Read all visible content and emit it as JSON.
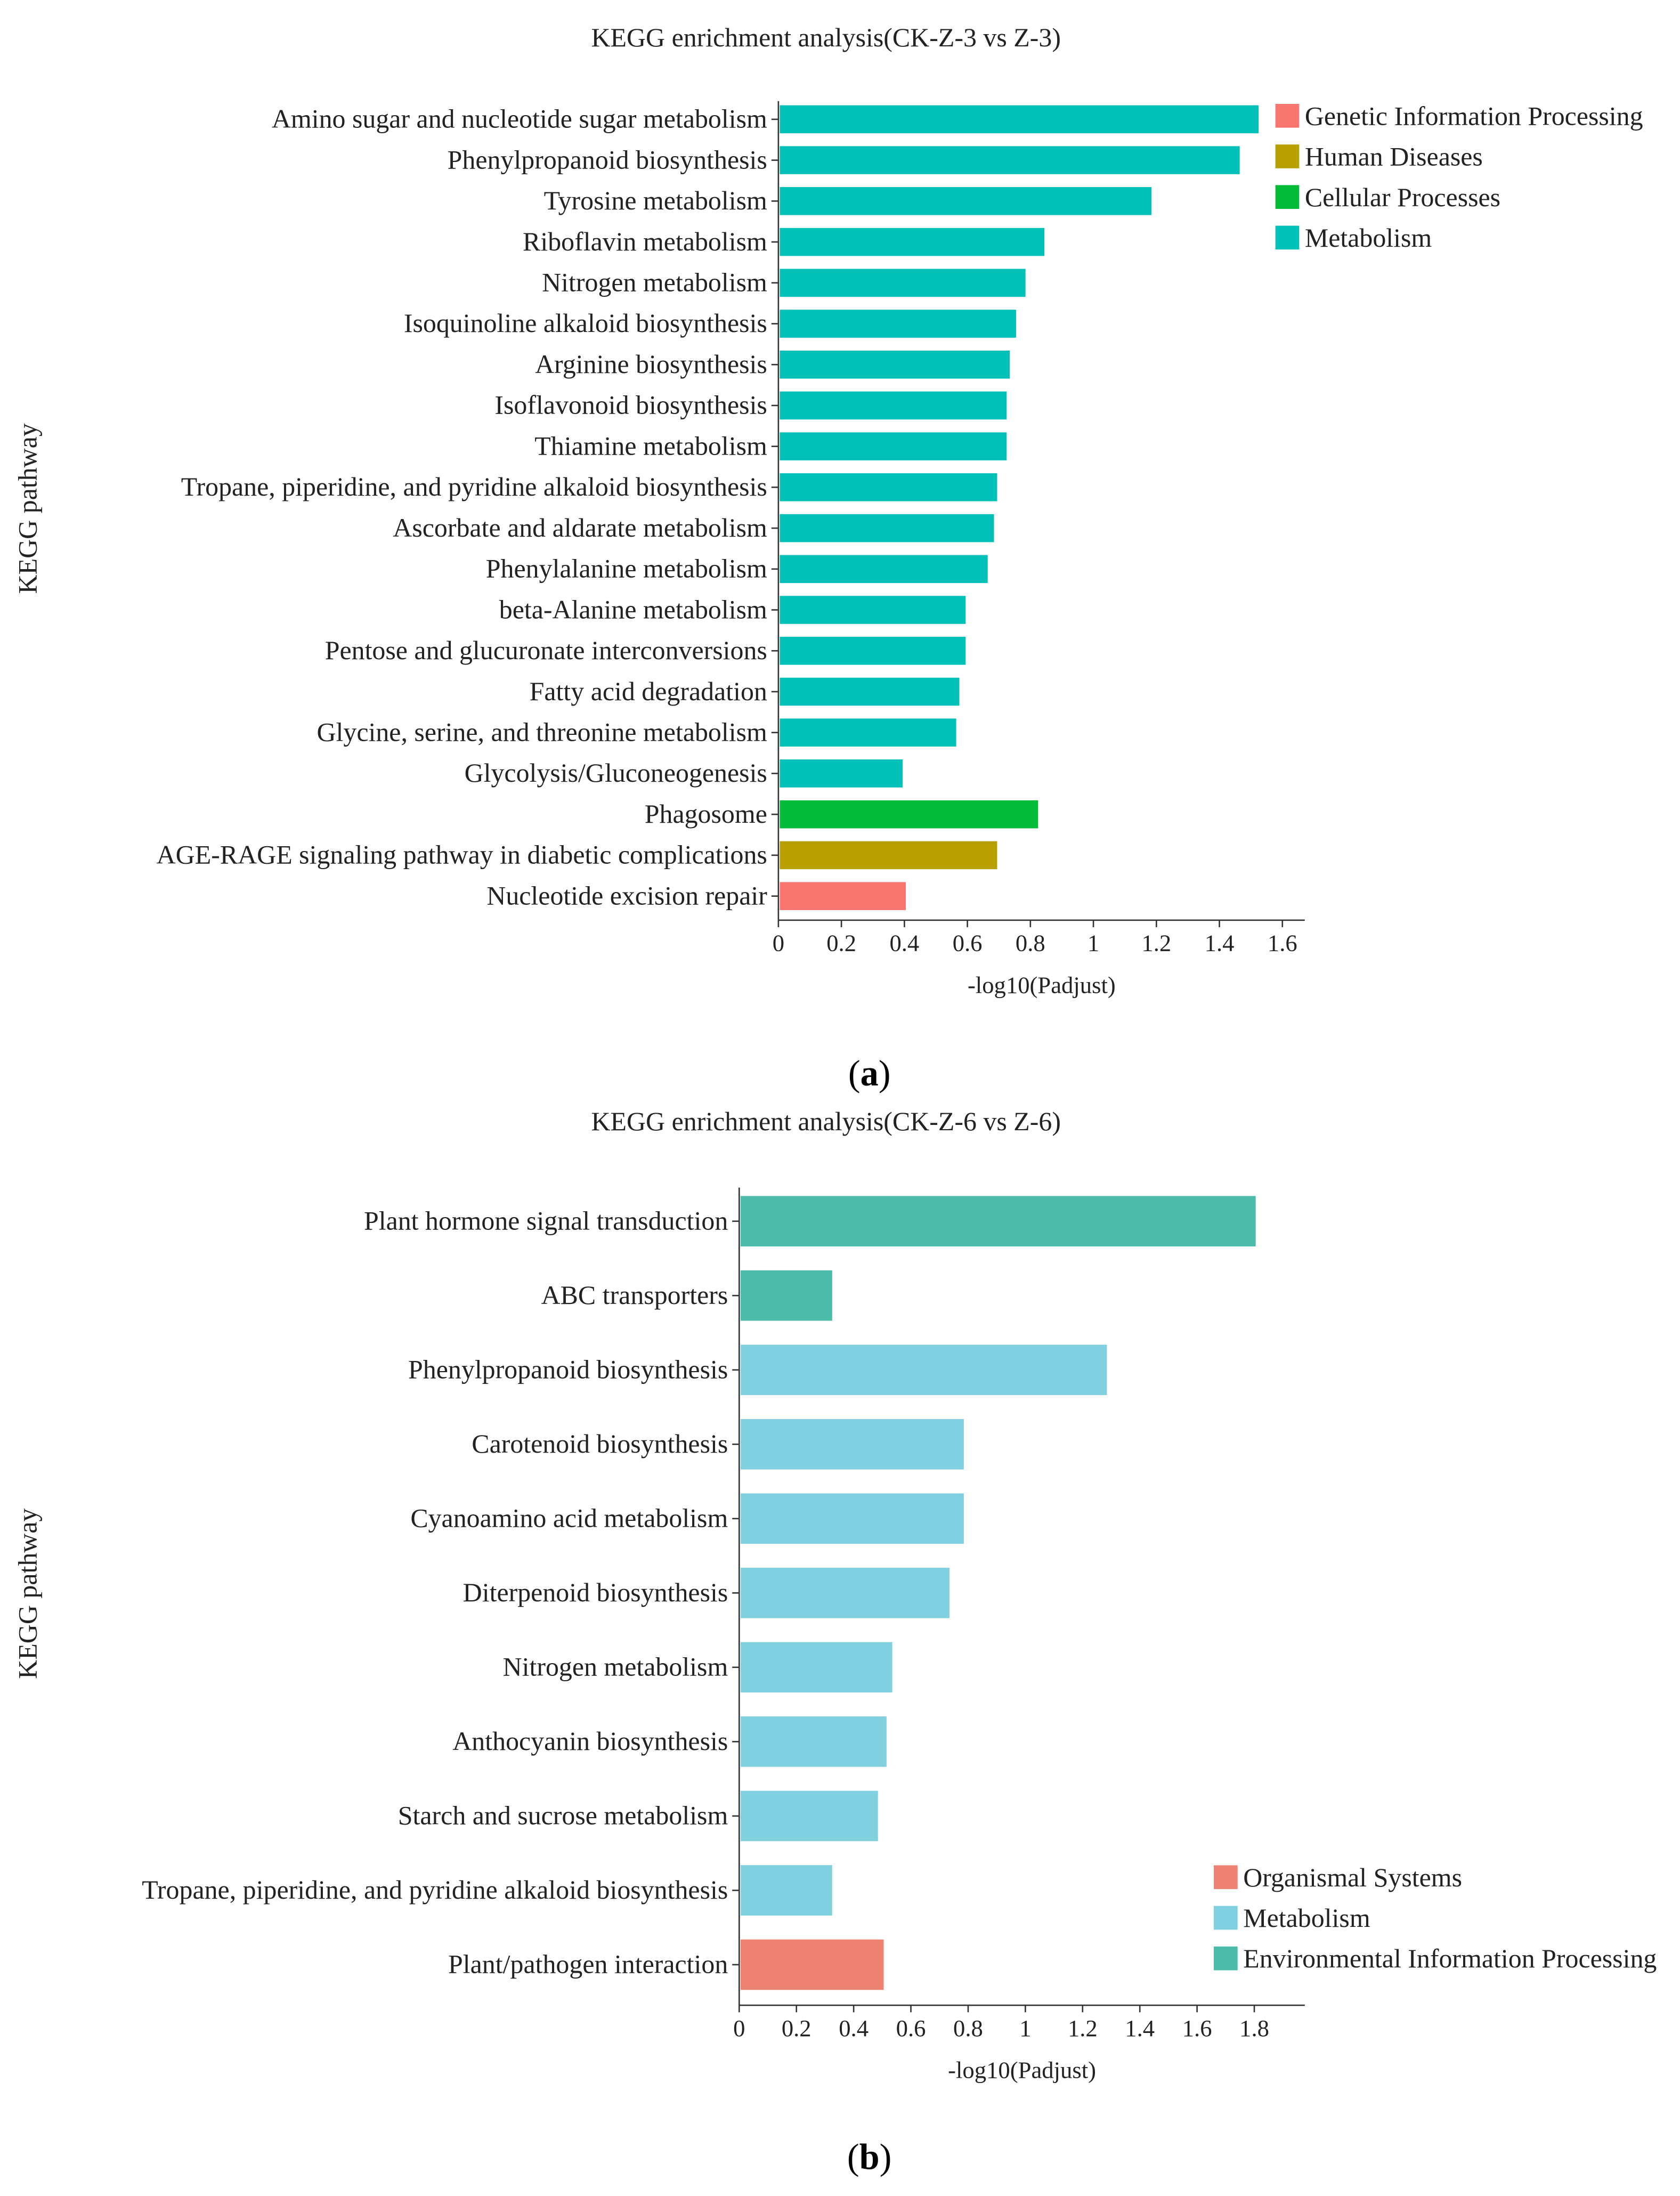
{
  "captions": [
    "(a)",
    "(b)"
  ],
  "caption_letters": [
    "a",
    "b"
  ],
  "chart_data": [
    {
      "type": "bar",
      "orientation": "horizontal",
      "title": "KEGG enrichment analysis(CK-Z-3 vs Z-3)",
      "xlabel": "-log10(Padjust)",
      "ylabel": "KEGG pathway",
      "xlim": [
        0,
        1.6
      ],
      "xticks": [
        "0",
        "0.2",
        "0.4",
        "0.6",
        "0.8",
        "1",
        "1.2",
        "1.4",
        "1.6"
      ],
      "legend_position": "top-right",
      "legend": [
        {
          "name": "Genetic Information Processing",
          "color": "#F8766D"
        },
        {
          "name": "Human Diseases",
          "color": "#B79F00"
        },
        {
          "name": "Cellular Processes",
          "color": "#00BA38"
        },
        {
          "name": "Metabolism",
          "color": "#00C0B8"
        }
      ],
      "categories": [
        "Amino sugar and nucleotide sugar metabolism",
        "Phenylpropanoid biosynthesis",
        "Tyrosine metabolism",
        "Riboflavin metabolism",
        "Nitrogen metabolism",
        "Isoquinoline alkaloid biosynthesis",
        "Arginine biosynthesis",
        "Isoflavonoid biosynthesis",
        "Thiamine metabolism",
        "Tropane, piperidine, and pyridine alkaloid biosynthesis",
        "Ascorbate and aldarate metabolism",
        "Phenylalanine metabolism",
        "beta-Alanine metabolism",
        "Pentose and glucuronate interconversions",
        "Fatty acid degradation",
        "Glycine, serine, and threonine metabolism",
        "Glycolysis/Gluconeogenesis",
        "Phagosome",
        "AGE-RAGE signaling pathway in diabetic complications",
        "Nucleotide excision repair"
      ],
      "values": [
        1.52,
        1.46,
        1.18,
        0.84,
        0.78,
        0.75,
        0.73,
        0.72,
        0.72,
        0.69,
        0.68,
        0.66,
        0.59,
        0.59,
        0.57,
        0.56,
        0.39,
        0.82,
        0.69,
        0.4
      ],
      "groups": [
        "Metabolism",
        "Metabolism",
        "Metabolism",
        "Metabolism",
        "Metabolism",
        "Metabolism",
        "Metabolism",
        "Metabolism",
        "Metabolism",
        "Metabolism",
        "Metabolism",
        "Metabolism",
        "Metabolism",
        "Metabolism",
        "Metabolism",
        "Metabolism",
        "Metabolism",
        "Cellular Processes",
        "Human Diseases",
        "Genetic Information Processing"
      ]
    },
    {
      "type": "bar",
      "orientation": "horizontal",
      "title": "KEGG enrichment analysis(CK-Z-6 vs Z-6)",
      "xlabel": "-log10(Padjust)",
      "ylabel": "KEGG pathway",
      "xlim": [
        0,
        1.8
      ],
      "xticks": [
        "0",
        "0.2",
        "0.4",
        "0.6",
        "0.8",
        "1",
        "1.2",
        "1.4",
        "1.6",
        "1.8"
      ],
      "legend_position": "bottom-right",
      "legend": [
        {
          "name": "Organismal Systems",
          "color": "#EE8272"
        },
        {
          "name": "Metabolism",
          "color": "#80D0E0"
        },
        {
          "name": "Environmental Information Processing",
          "color": "#4CBCA8"
        }
      ],
      "categories": [
        "Plant hormone signal transduction",
        "ABC transporters",
        "Phenylpropanoid biosynthesis",
        "Carotenoid biosynthesis",
        "Cyanoamino acid metabolism",
        "Diterpenoid biosynthesis",
        "Nitrogen metabolism",
        "Anthocyanin biosynthesis",
        "Starch and sucrose metabolism",
        "Tropane, piperidine, and pyridine alkaloid biosynthesis",
        "Plant/pathogen interaction"
      ],
      "values": [
        1.8,
        0.32,
        1.28,
        0.78,
        0.78,
        0.73,
        0.53,
        0.51,
        0.48,
        0.32,
        0.5
      ],
      "groups": [
        "Environmental Information Processing",
        "Environmental Information Processing",
        "Metabolism",
        "Metabolism",
        "Metabolism",
        "Metabolism",
        "Metabolism",
        "Metabolism",
        "Metabolism",
        "Metabolism",
        "Organismal Systems"
      ]
    }
  ]
}
